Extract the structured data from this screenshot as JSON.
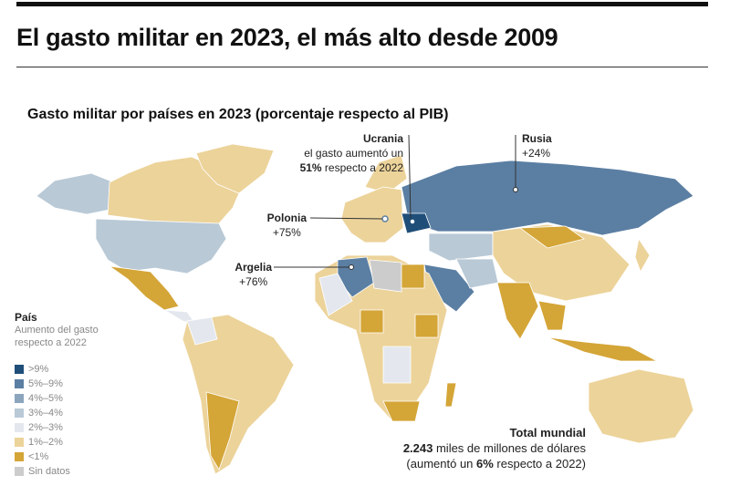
{
  "header": {
    "title": "El gasto militar en 2023, el más alto desde 2009",
    "subtitle": "Gasto militar por países en 2023 (porcentaje respecto al PIB)"
  },
  "annotations": {
    "ucrania": {
      "name": "Ucrania",
      "line1": "el gasto aumentó un",
      "value": "51%",
      "line2": " respecto a 2022"
    },
    "rusia": {
      "name": "Rusia",
      "value": "+24%"
    },
    "polonia": {
      "name": "Polonia",
      "value": "+75%"
    },
    "argelia": {
      "name": "Argelia",
      "value": "+76%"
    }
  },
  "legend": {
    "title": "País",
    "subtitle_1": "Aumento del gasto",
    "subtitle_2": "respecto a 2022",
    "items": [
      {
        "label": ">9%",
        "color": "#1f4e79"
      },
      {
        "label": "5%–9%",
        "color": "#5b7fa3"
      },
      {
        "label": "4%–5%",
        "color": "#8ba5bd"
      },
      {
        "label": "3%–4%",
        "color": "#b9c9d6"
      },
      {
        "label": "2%–3%",
        "color": "#e4e8ee"
      },
      {
        "label": "1%–2%",
        "color": "#ecd39a"
      },
      {
        "label": "<1%",
        "color": "#d4a537"
      },
      {
        "label": "Sin datos",
        "color": "#cccccc"
      }
    ]
  },
  "total": {
    "title": "Total mundial",
    "amount": "2.243",
    "amount_text": " miles de millones de dólares",
    "change_prefix": "(aumentó un ",
    "change_value": "6%",
    "change_suffix": " respecto a 2022)"
  }
}
